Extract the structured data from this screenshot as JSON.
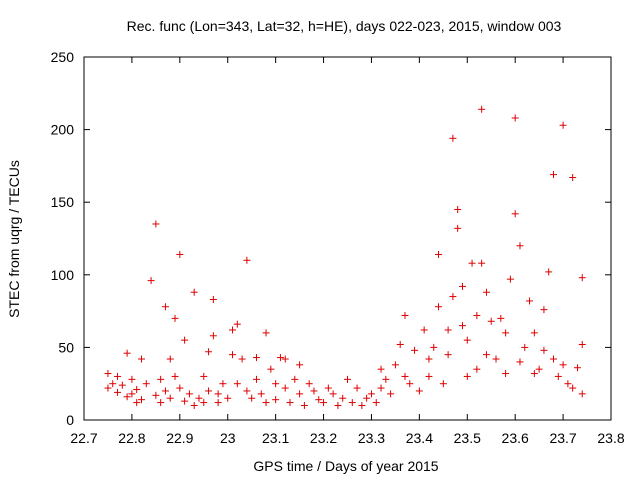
{
  "chart_data": {
    "type": "scatter",
    "title": "Rec. func (Lon=343, Lat=32, h=HE), days 022-023, 2015, window 003",
    "xlabel": "GPS time / Days of year 2015",
    "ylabel": "STEC from uqrg / TECUs",
    "xlim": [
      22.7,
      23.8
    ],
    "ylim": [
      0,
      250
    ],
    "xticks": [
      "22.7",
      "22.8",
      "22.9",
      "23",
      "23.1",
      "23.2",
      "23.3",
      "23.4",
      "23.5",
      "23.6",
      "23.7",
      "23.8"
    ],
    "yticks": [
      "0",
      "50",
      "100",
      "150",
      "200",
      "250"
    ],
    "marker": "plus",
    "color": "#dd0000",
    "grid": false,
    "legend": "none",
    "series": [
      {
        "points": [
          [
            22.75,
            22
          ],
          [
            22.75,
            32
          ],
          [
            22.76,
            25
          ],
          [
            22.77,
            19
          ],
          [
            22.77,
            30
          ],
          [
            22.78,
            24
          ],
          [
            22.79,
            16
          ],
          [
            22.79,
            46
          ],
          [
            22.8,
            28
          ],
          [
            22.8,
            18
          ],
          [
            22.81,
            12
          ],
          [
            22.81,
            21
          ],
          [
            22.82,
            14
          ],
          [
            22.82,
            42
          ],
          [
            22.83,
            25
          ],
          [
            22.84,
            96
          ],
          [
            22.85,
            135
          ],
          [
            22.85,
            17
          ],
          [
            22.86,
            28
          ],
          [
            22.86,
            12
          ],
          [
            22.87,
            78
          ],
          [
            22.87,
            20
          ],
          [
            22.88,
            42
          ],
          [
            22.88,
            15
          ],
          [
            22.89,
            30
          ],
          [
            22.89,
            70
          ],
          [
            22.9,
            114
          ],
          [
            22.9,
            22
          ],
          [
            22.91,
            55
          ],
          [
            22.91,
            13
          ],
          [
            22.92,
            18
          ],
          [
            22.93,
            88
          ],
          [
            22.93,
            10
          ],
          [
            22.94,
            15
          ],
          [
            22.95,
            30
          ],
          [
            22.95,
            12
          ],
          [
            22.96,
            47
          ],
          [
            22.96,
            20
          ],
          [
            22.97,
            83
          ],
          [
            22.97,
            58
          ],
          [
            22.98,
            18
          ],
          [
            22.98,
            12
          ],
          [
            22.99,
            25
          ],
          [
            23.0,
            15
          ],
          [
            23.01,
            45
          ],
          [
            23.01,
            62
          ],
          [
            23.02,
            66
          ],
          [
            23.02,
            25
          ],
          [
            23.03,
            42
          ],
          [
            23.04,
            110
          ],
          [
            23.04,
            20
          ],
          [
            23.05,
            15
          ],
          [
            23.06,
            43
          ],
          [
            23.06,
            28
          ],
          [
            23.07,
            18
          ],
          [
            23.08,
            60
          ],
          [
            23.08,
            12
          ],
          [
            23.09,
            35
          ],
          [
            23.1,
            25
          ],
          [
            23.1,
            14
          ],
          [
            23.11,
            43
          ],
          [
            23.12,
            42
          ],
          [
            23.12,
            22
          ],
          [
            23.13,
            12
          ],
          [
            23.14,
            28
          ],
          [
            23.15,
            38
          ],
          [
            23.15,
            18
          ],
          [
            23.16,
            10
          ],
          [
            23.17,
            25
          ],
          [
            23.18,
            20
          ],
          [
            23.19,
            14
          ],
          [
            23.2,
            12
          ],
          [
            23.21,
            22
          ],
          [
            23.22,
            18
          ],
          [
            23.23,
            10
          ],
          [
            23.24,
            15
          ],
          [
            23.25,
            28
          ],
          [
            23.26,
            12
          ],
          [
            23.27,
            22
          ],
          [
            23.28,
            10
          ],
          [
            23.29,
            15
          ],
          [
            23.3,
            18
          ],
          [
            23.31,
            12
          ],
          [
            23.32,
            35
          ],
          [
            23.32,
            22
          ],
          [
            23.33,
            28
          ],
          [
            23.34,
            18
          ],
          [
            23.35,
            38
          ],
          [
            23.36,
            52
          ],
          [
            23.37,
            72
          ],
          [
            23.37,
            30
          ],
          [
            23.38,
            25
          ],
          [
            23.39,
            48
          ],
          [
            23.4,
            20
          ],
          [
            23.41,
            62
          ],
          [
            23.42,
            30
          ],
          [
            23.42,
            42
          ],
          [
            23.43,
            50
          ],
          [
            23.44,
            114
          ],
          [
            23.44,
            78
          ],
          [
            23.45,
            25
          ],
          [
            23.46,
            62
          ],
          [
            23.46,
            45
          ],
          [
            23.47,
            85
          ],
          [
            23.47,
            194
          ],
          [
            23.48,
            145
          ],
          [
            23.48,
            132
          ],
          [
            23.49,
            92
          ],
          [
            23.49,
            65
          ],
          [
            23.5,
            30
          ],
          [
            23.5,
            55
          ],
          [
            23.51,
            108
          ],
          [
            23.52,
            35
          ],
          [
            23.52,
            72
          ],
          [
            23.53,
            214
          ],
          [
            23.53,
            108
          ],
          [
            23.54,
            45
          ],
          [
            23.54,
            88
          ],
          [
            23.55,
            68
          ],
          [
            23.56,
            42
          ],
          [
            23.57,
            70
          ],
          [
            23.58,
            32
          ],
          [
            23.58,
            60
          ],
          [
            23.59,
            97
          ],
          [
            23.6,
            208
          ],
          [
            23.6,
            142
          ],
          [
            23.61,
            120
          ],
          [
            23.61,
            40
          ],
          [
            23.62,
            50
          ],
          [
            23.63,
            82
          ],
          [
            23.64,
            60
          ],
          [
            23.64,
            32
          ],
          [
            23.65,
            35
          ],
          [
            23.66,
            76
          ],
          [
            23.66,
            48
          ],
          [
            23.67,
            102
          ],
          [
            23.68,
            42
          ],
          [
            23.68,
            169
          ],
          [
            23.69,
            30
          ],
          [
            23.7,
            203
          ],
          [
            23.7,
            38
          ],
          [
            23.71,
            25
          ],
          [
            23.72,
            167
          ],
          [
            23.72,
            22
          ],
          [
            23.73,
            36
          ],
          [
            23.74,
            98
          ],
          [
            23.74,
            52
          ],
          [
            23.74,
            18
          ]
        ]
      }
    ]
  }
}
